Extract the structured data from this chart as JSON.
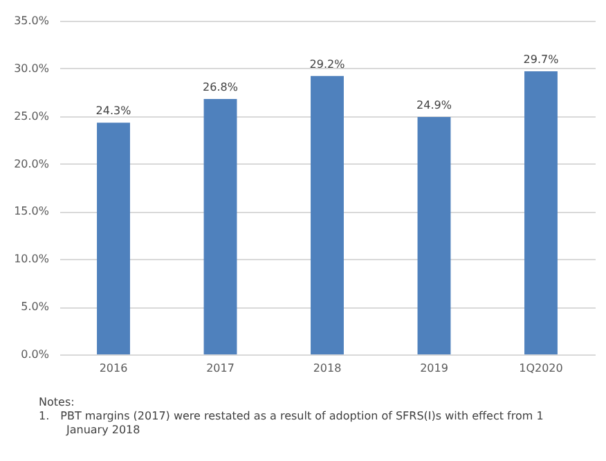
{
  "chart_data": {
    "type": "bar",
    "categories": [
      "2016",
      "2017",
      "2018",
      "2019",
      "1Q2020"
    ],
    "values": [
      24.3,
      26.8,
      29.2,
      24.9,
      29.7
    ],
    "value_labels": [
      "24.3%",
      "26.8%",
      "29.2%",
      "24.9%",
      "29.7%"
    ],
    "color": "#4f81bd",
    "ylim": [
      0,
      35
    ],
    "yticks": [
      {
        "value": 0,
        "label": "0.0%"
      },
      {
        "value": 5,
        "label": "5.0%"
      },
      {
        "value": 10,
        "label": "10.0%"
      },
      {
        "value": 15,
        "label": "15.0%"
      },
      {
        "value": 20,
        "label": "20.0%"
      },
      {
        "value": 25,
        "label": "25.0%"
      },
      {
        "value": 30,
        "label": "30.0%"
      },
      {
        "value": 35,
        "label": "35.0%"
      }
    ],
    "grid": "y",
    "annotations": [
      "Notes:",
      "1. PBT margins (2017) were restated as a result of adoption of SFRS(I)s with effect from 1 January 2018"
    ]
  }
}
